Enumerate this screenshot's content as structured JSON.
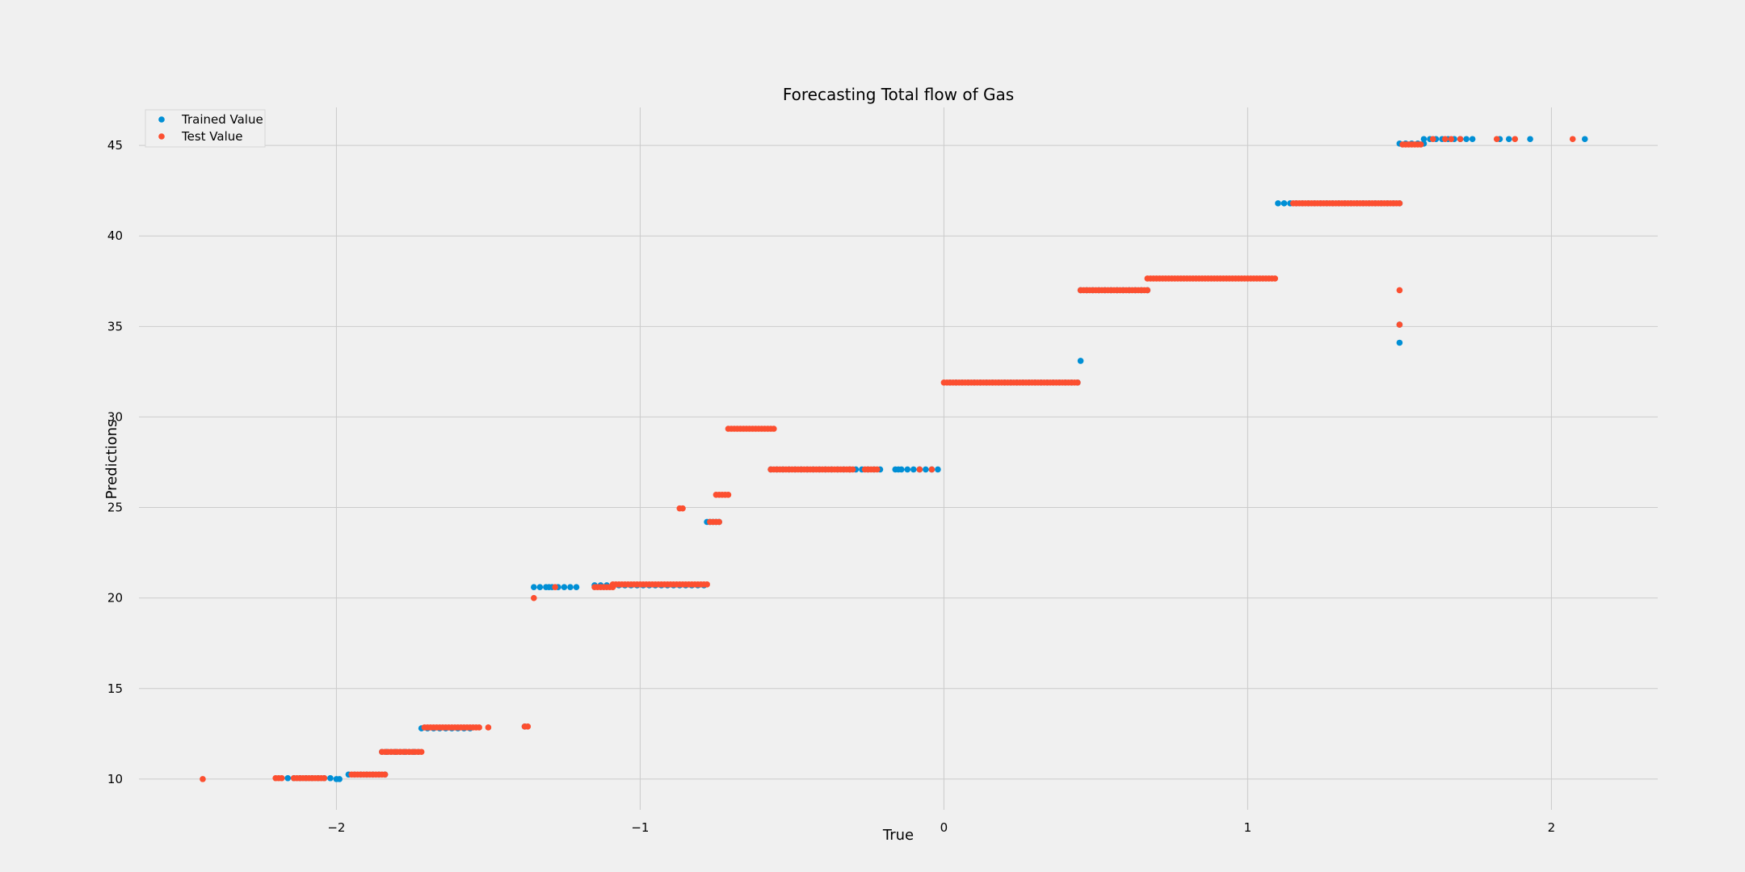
{
  "chart_data": {
    "type": "scatter",
    "title": "Forecasting Total flow of Gas",
    "xlabel": "True",
    "ylabel": "Predictions",
    "xlim": [
      -2.65,
      2.35
    ],
    "ylim": [
      8.3,
      47.1
    ],
    "xticks": [
      -2,
      -1,
      0,
      1,
      2
    ],
    "xtick_labels": [
      "−2",
      "−1",
      "0",
      "1",
      "2"
    ],
    "yticks": [
      10,
      15,
      20,
      25,
      30,
      35,
      40,
      45
    ],
    "ytick_labels": [
      "10",
      "15",
      "20",
      "25",
      "30",
      "35",
      "40",
      "45"
    ],
    "grid": true,
    "legend_position": "top-left",
    "series": [
      {
        "name": "Trained Value",
        "color": "#008fd5",
        "segments": [
          {
            "x0": -2.16,
            "x1": -2.02,
            "y": 10.05,
            "step": 0.02
          },
          {
            "x0": -1.96,
            "x1": -1.84,
            "y": 10.25,
            "step": 0.02
          },
          {
            "x0": -1.85,
            "x1": -1.72,
            "y": 11.5,
            "step": 0.015
          },
          {
            "x0": -1.72,
            "x1": -1.55,
            "y": 12.8,
            "step": 0.02
          },
          {
            "x0": -1.35,
            "x1": -1.2,
            "y": 20.6,
            "step": 0.02
          },
          {
            "x0": -1.15,
            "x1": -0.78,
            "y": 20.7,
            "step": 0.02
          },
          {
            "x0": -0.78,
            "x1": -0.74,
            "y": 24.2,
            "step": 0.01
          },
          {
            "x0": -0.57,
            "x1": -0.21,
            "y": 27.1,
            "step": 0.02
          },
          {
            "x0": -0.16,
            "x1": -0.02,
            "y": 27.1,
            "step": 0.02
          },
          {
            "x0": 0.02,
            "x1": 0.44,
            "y": 31.9,
            "step": 0.02
          },
          {
            "x0": 0.45,
            "x1": 0.67,
            "y": 37.0,
            "step": 0.02
          },
          {
            "x0": 1.1,
            "x1": 1.5,
            "y": 41.8,
            "step": 0.02
          },
          {
            "x0": 1.5,
            "x1": 1.58,
            "y": 45.1,
            "step": 0.02
          },
          {
            "x0": 1.58,
            "x1": 1.74,
            "y": 45.35,
            "step": 0.02
          }
        ],
        "points": [
          [
            -2.0,
            10.0
          ],
          [
            -1.99,
            10.0
          ],
          [
            -1.38,
            12.9
          ],
          [
            -1.3,
            20.6
          ],
          [
            -0.15,
            27.1
          ],
          [
            0.45,
            33.1
          ],
          [
            1.5,
            34.1
          ],
          [
            1.5,
            35.1
          ],
          [
            1.83,
            45.35
          ],
          [
            1.86,
            45.35
          ],
          [
            1.93,
            45.35
          ],
          [
            2.11,
            45.35
          ]
        ]
      },
      {
        "name": "Test Value",
        "color": "#fc4f30",
        "segments": [
          {
            "x0": -2.2,
            "x1": -2.18,
            "y": 10.05,
            "step": 0.01
          },
          {
            "x0": -2.14,
            "x1": -2.04,
            "y": 10.05,
            "step": 0.01
          },
          {
            "x0": -1.95,
            "x1": -1.84,
            "y": 10.25,
            "step": 0.01
          },
          {
            "x0": -1.85,
            "x1": -1.72,
            "y": 11.5,
            "step": 0.01
          },
          {
            "x0": -1.71,
            "x1": -1.53,
            "y": 12.85,
            "step": 0.01
          },
          {
            "x0": -1.15,
            "x1": -1.09,
            "y": 20.6,
            "step": 0.01
          },
          {
            "x0": -1.09,
            "x1": -0.78,
            "y": 20.75,
            "step": 0.01
          },
          {
            "x0": -0.77,
            "x1": -0.74,
            "y": 24.2,
            "step": 0.01
          },
          {
            "x0": -0.75,
            "x1": -0.71,
            "y": 25.7,
            "step": 0.01
          },
          {
            "x0": -0.71,
            "x1": -0.56,
            "y": 29.35,
            "step": 0.01
          },
          {
            "x0": -0.57,
            "x1": -0.3,
            "y": 27.1,
            "step": 0.01
          },
          {
            "x0": -0.26,
            "x1": -0.22,
            "y": 27.1,
            "step": 0.01
          },
          {
            "x0": 0.0,
            "x1": 0.44,
            "y": 31.9,
            "step": 0.01
          },
          {
            "x0": 0.45,
            "x1": 0.67,
            "y": 37.0,
            "step": 0.01
          },
          {
            "x0": 0.67,
            "x1": 1.09,
            "y": 37.65,
            "step": 0.01
          },
          {
            "x0": 1.15,
            "x1": 1.5,
            "y": 41.8,
            "step": 0.01
          },
          {
            "x0": 1.51,
            "x1": 1.57,
            "y": 45.05,
            "step": 0.01
          }
        ],
        "points": [
          [
            -2.44,
            10.0
          ],
          [
            -1.5,
            12.85
          ],
          [
            -1.38,
            12.9
          ],
          [
            -1.37,
            12.9
          ],
          [
            -1.35,
            20.0
          ],
          [
            -1.28,
            20.6
          ],
          [
            -0.87,
            24.95
          ],
          [
            -0.86,
            24.95
          ],
          [
            -0.31,
            27.1
          ],
          [
            -0.08,
            27.1
          ],
          [
            -0.04,
            27.1
          ],
          [
            1.5,
            37.0
          ],
          [
            1.5,
            35.1
          ],
          [
            1.61,
            45.35
          ],
          [
            1.65,
            45.35
          ],
          [
            1.67,
            45.35
          ],
          [
            1.7,
            45.35
          ],
          [
            1.82,
            45.35
          ],
          [
            1.88,
            45.35
          ],
          [
            2.07,
            45.35
          ]
        ]
      }
    ]
  }
}
